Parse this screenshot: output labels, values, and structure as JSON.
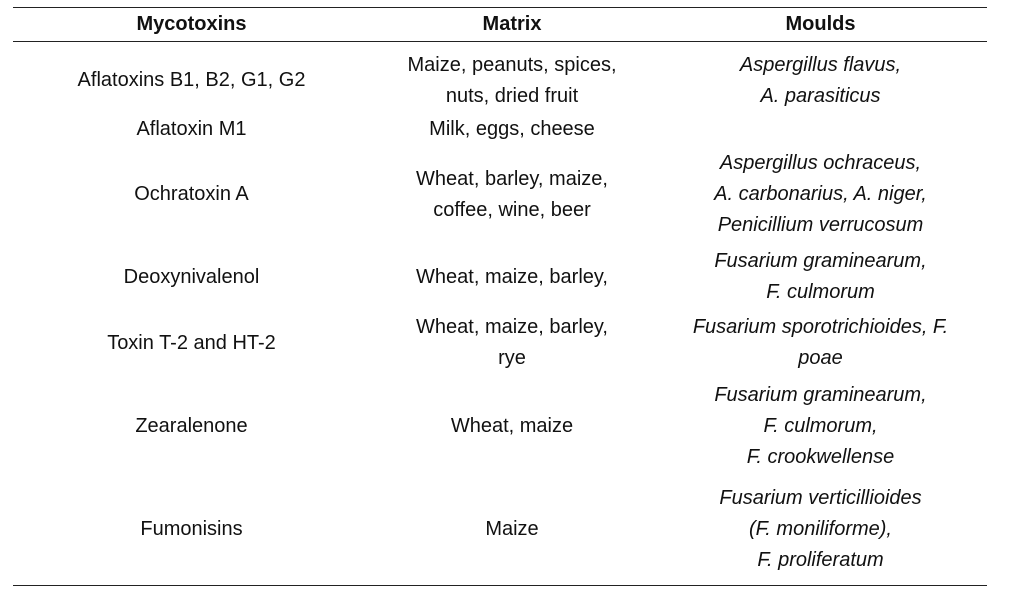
{
  "table": {
    "headers": {
      "mycotoxins": "Mycotoxins",
      "matrix": "Matrix",
      "moulds": "Moulds"
    },
    "rows": [
      {
        "mycotoxin": "Aflatoxins B1, B2, G1, G2",
        "matrix": "Maize, peanuts, spices,\nnuts, dried fruit",
        "moulds": "Aspergillus flavus,\nA. parasiticus"
      },
      {
        "mycotoxin": "Aflatoxin M1",
        "matrix": "Milk, eggs, cheese",
        "moulds": ""
      },
      {
        "mycotoxin": "Ochratoxin A",
        "matrix": "Wheat, barley, maize,\ncoffee, wine, beer",
        "moulds": "Aspergillus ochraceus,\nA. carbonarius, A. niger,\nPenicillium verrucosum"
      },
      {
        "mycotoxin": "Deoxynivalenol",
        "matrix": "Wheat, maize, barley,",
        "moulds": "Fusarium graminearum,\nF. culmorum"
      },
      {
        "mycotoxin": "Toxin T-2 and HT-2",
        "matrix": "Wheat, maize, barley,\nrye",
        "moulds": "Fusarium sporotrichioides, F.\npoae"
      },
      {
        "mycotoxin": "Zearalenone",
        "matrix": "Wheat, maize",
        "moulds": "Fusarium graminearum,\nF. culmorum,\nF. crookwellense"
      },
      {
        "mycotoxin": "Fumonisins",
        "matrix": "Maize",
        "moulds": "Fusarium verticillioides\n(F. moniliforme),\nF. proliferatum"
      }
    ]
  }
}
